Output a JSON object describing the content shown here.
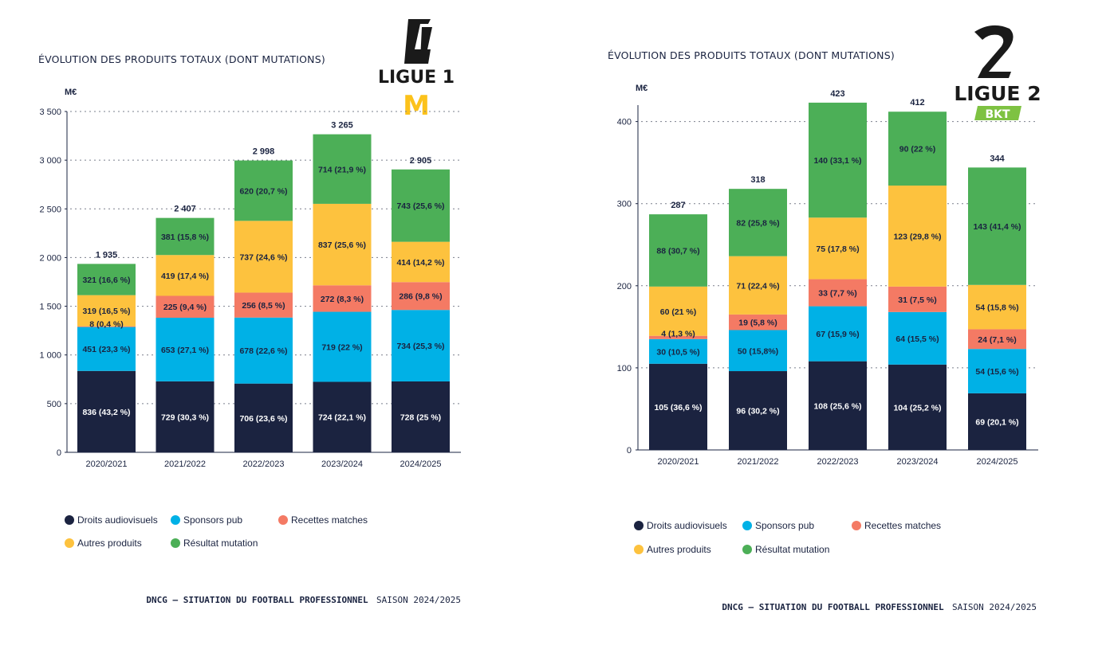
{
  "colors": {
    "droits": "#1b2340",
    "sponsors": "#00b1e6",
    "recettes": "#f47a64",
    "autres": "#fdc23e",
    "resultat": "#4caf57"
  },
  "legend": {
    "droits": "Droits audiovisuels",
    "sponsors": "Sponsors pub",
    "recettes": "Recettes matches",
    "autres": "Autres produits",
    "resultat": "Résultat mutation"
  },
  "footer": {
    "bold": "DNCG – SITUATION DU FOOTBALL PROFESSIONNEL",
    "regular": "SAISON 2024/2025"
  },
  "chart_data": [
    {
      "type": "bar",
      "stacked": true,
      "title": "ÉVOLUTION DES PRODUITS TOTAUX (DONT MUTATIONS)",
      "ylabel": "M€",
      "logo": {
        "line1": "LIGUE 1",
        "sponsor": "M"
      },
      "ylim": [
        0,
        3500
      ],
      "yticks": [
        0,
        500,
        1000,
        1500,
        2000,
        2500,
        3000,
        3500
      ],
      "ytick_labels": [
        "0",
        "500",
        "1 000",
        "1 500",
        "2 000",
        "2 500",
        "3 000",
        "3 500"
      ],
      "categories": [
        "2020/2021",
        "2021/2022",
        "2022/2023",
        "2023/2024",
        "2024/2025"
      ],
      "totals": [
        1935,
        2407,
        2998,
        3265,
        2905
      ],
      "total_labels": [
        "1 935",
        "2 407",
        "2 998",
        "3 265",
        "2 905"
      ],
      "series": [
        {
          "key": "droits",
          "name": "Droits audiovisuels",
          "values": [
            836,
            729,
            706,
            724,
            728
          ],
          "labels": [
            "836 (43,2 %)",
            "729 (30,3 %)",
            "706 (23,6 %)",
            "724 (22,1 %)",
            "728 (25 %)"
          ]
        },
        {
          "key": "sponsors",
          "name": "Sponsors pub",
          "values": [
            451,
            653,
            678,
            719,
            734
          ],
          "labels": [
            "451 (23,3 %)",
            "653 (27,1 %)",
            "678 (22,6 %)",
            "719 (22 %)",
            "734 (25,3 %)"
          ]
        },
        {
          "key": "recettes",
          "name": "Recettes matches",
          "values": [
            8,
            225,
            256,
            272,
            286
          ],
          "labels": [
            "8 (0,4 %)",
            "225 (9,4 %)",
            "256 (8,5 %)",
            "272 (8,3 %)",
            "286 (9,8 %)"
          ]
        },
        {
          "key": "autres",
          "name": "Autres produits",
          "values": [
            319,
            419,
            737,
            837,
            414
          ],
          "labels": [
            "319 (16,5 %)",
            "419 (17,4 %)",
            "737 (24,6 %)",
            "837 (25,6 %)",
            "414 (14,2 %)"
          ]
        },
        {
          "key": "resultat",
          "name": "Résultat mutation",
          "values": [
            321,
            381,
            620,
            714,
            743
          ],
          "labels": [
            "321 (16,6 %)",
            "381 (15,8 %)",
            "620 (20,7 %)",
            "714 (21,9 %)",
            "743 (25,6 %)"
          ]
        }
      ]
    },
    {
      "type": "bar",
      "stacked": true,
      "title": "ÉVOLUTION DES PRODUITS TOTAUX (DONT MUTATIONS)",
      "ylabel": "M€",
      "logo": {
        "line1": "LIGUE 2",
        "sponsor": "BKT"
      },
      "ylim": [
        0,
        420
      ],
      "yticks": [
        0,
        100,
        200,
        300,
        400
      ],
      "ytick_labels": [
        "0",
        "100",
        "200",
        "300",
        "400"
      ],
      "categories": [
        "2020/2021",
        "2021/2022",
        "2022/2023",
        "2023/2024",
        "2024/2025"
      ],
      "totals": [
        287,
        318,
        423,
        412,
        344
      ],
      "total_labels": [
        "287",
        "318",
        "423",
        "412",
        "344"
      ],
      "series": [
        {
          "key": "droits",
          "name": "Droits audiovisuels",
          "values": [
            105,
            96,
            108,
            104,
            69
          ],
          "labels": [
            "105 (36,6 %)",
            "96 (30,2 %)",
            "108 (25,6 %)",
            "104 (25,2 %)",
            "69 (20,1 %)"
          ]
        },
        {
          "key": "sponsors",
          "name": "Sponsors pub",
          "values": [
            30,
            50,
            67,
            64,
            54
          ],
          "labels": [
            "30 (10,5 %)",
            "50 (15,8%)",
            "67 (15,9 %)",
            "64 (15,5 %)",
            "54 (15,6 %)"
          ]
        },
        {
          "key": "recettes",
          "name": "Recettes matches",
          "values": [
            4,
            19,
            33,
            31,
            24
          ],
          "labels": [
            "4 (1,3 %)",
            "19 (5,8 %)",
            "33 (7,7 %)",
            "31 (7,5 %)",
            "24 (7,1 %)"
          ]
        },
        {
          "key": "autres",
          "name": "Autres produits",
          "values": [
            60,
            71,
            75,
            123,
            54
          ],
          "labels": [
            "60 (21 %)",
            "71 (22,4 %)",
            "75 (17,8 %)",
            "123 (29,8 %)",
            "54 (15,8 %)"
          ]
        },
        {
          "key": "resultat",
          "name": "Résultat mutation",
          "values": [
            88,
            82,
            140,
            90,
            143
          ],
          "labels": [
            "88 (30,7 %)",
            "82 (25,8 %)",
            "140 (33,1 %)",
            "90 (22 %)",
            "143 (41,4 %)"
          ]
        }
      ]
    }
  ]
}
